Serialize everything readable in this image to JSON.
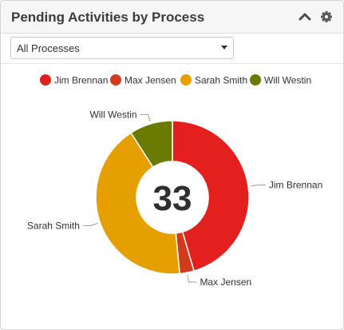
{
  "widget": {
    "title": "Pending Activities by Process",
    "collapse_icon": "chevron-up-icon",
    "settings_icon": "gear-icon"
  },
  "filter": {
    "selected": "All Processes"
  },
  "colors": {
    "Jim Brennan": "#e4201f",
    "Max Jensen": "#d23c1c",
    "Sarah Smith": "#e5a000",
    "Will Westin": "#6b7a00"
  },
  "chart_data": {
    "type": "pie",
    "donut": true,
    "center_label": "33",
    "legend_position": "top",
    "slices": [
      {
        "label": "Jim Brennan",
        "value": 15
      },
      {
        "label": "Max Jensen",
        "value": 1
      },
      {
        "label": "Sarah Smith",
        "value": 14
      },
      {
        "label": "Will Westin",
        "value": 3
      }
    ]
  }
}
